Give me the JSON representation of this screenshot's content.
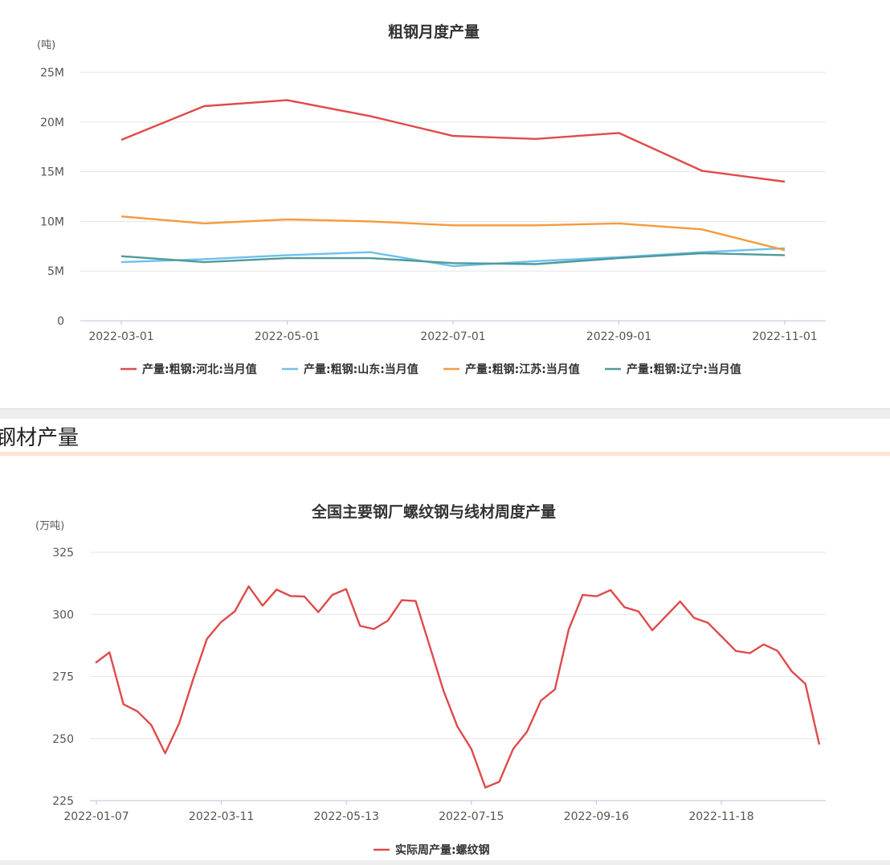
{
  "section": {
    "title": "钢材产量"
  },
  "chart_data": [
    {
      "type": "line",
      "title": "粗钢月度产量",
      "yunit": "(吨)",
      "yticks": [
        0,
        5000000,
        10000000,
        15000000,
        20000000,
        25000000
      ],
      "yticklabels": [
        "0",
        "5M",
        "10M",
        "15M",
        "20M",
        "25M"
      ],
      "ylim": [
        0,
        25000000
      ],
      "x": [
        "2022-03-01",
        "2022-04-01",
        "2022-05-01",
        "2022-06-01",
        "2022-07-01",
        "2022-08-01",
        "2022-09-01",
        "2022-10-01",
        "2022-11-01"
      ],
      "xticklabels": [
        "2022-03-01",
        "2022-05-01",
        "2022-07-01",
        "2022-09-01",
        "2022-11-01"
      ],
      "grid": true,
      "legend_position": "bottom",
      "series": [
        {
          "name": "产量:粗钢:河北:当月值",
          "color": "#e04a4a",
          "values": [
            18200000,
            21600000,
            22200000,
            20600000,
            18600000,
            18300000,
            18900000,
            15100000,
            14000000
          ]
        },
        {
          "name": "产量:粗钢:山东:当月值",
          "color": "#6fbfee",
          "values": [
            5900000,
            6200000,
            6600000,
            6900000,
            5500000,
            6000000,
            6400000,
            6900000,
            7300000
          ]
        },
        {
          "name": "产量:粗钢:江苏:当月值",
          "color": "#f59a3c",
          "values": [
            10500000,
            9800000,
            10200000,
            10000000,
            9600000,
            9600000,
            9800000,
            9200000,
            7100000
          ]
        },
        {
          "name": "产量:粗钢:辽宁:当月值",
          "color": "#4f9a99",
          "values": [
            6500000,
            5900000,
            6300000,
            6300000,
            5800000,
            5700000,
            6300000,
            6800000,
            6600000
          ]
        }
      ]
    },
    {
      "type": "line",
      "title": "全国主要钢厂螺纹钢与线材周度产量",
      "yunit": "(万吨)",
      "yticks": [
        225,
        250,
        275,
        300,
        325
      ],
      "yticklabels": [
        "225",
        "250",
        "275",
        "300",
        "325"
      ],
      "ylim": [
        225,
        325
      ],
      "xticklabels": [
        "2022-01-07",
        "2022-03-11",
        "2022-05-13",
        "2022-07-15",
        "2022-09-16",
        "2022-11-18"
      ],
      "grid": true,
      "legend_position": "bottom",
      "series": [
        {
          "name": "实际周产量:螺纹钢",
          "color": "#e04a4a",
          "values": [
            280.5,
            284.7,
            263.8,
            261.0,
            255.5,
            244.1,
            256.1,
            273.7,
            290.1,
            296.8,
            301.2,
            311.3,
            303.5,
            310.0,
            307.4,
            307.2,
            300.9,
            307.8,
            310.2,
            295.4,
            294.1,
            297.5,
            305.7,
            305.4,
            287.4,
            269.2,
            254.8,
            245.8,
            230.3,
            232.6,
            245.8,
            252.8,
            265.3,
            269.8,
            294.0,
            307.8,
            307.3,
            309.8,
            302.9,
            301.2,
            293.6,
            299.4,
            305.2,
            298.6,
            296.6,
            291.0,
            285.3,
            284.4,
            287.9,
            285.3,
            277.2,
            272.0,
            247.6
          ]
        }
      ]
    }
  ]
}
